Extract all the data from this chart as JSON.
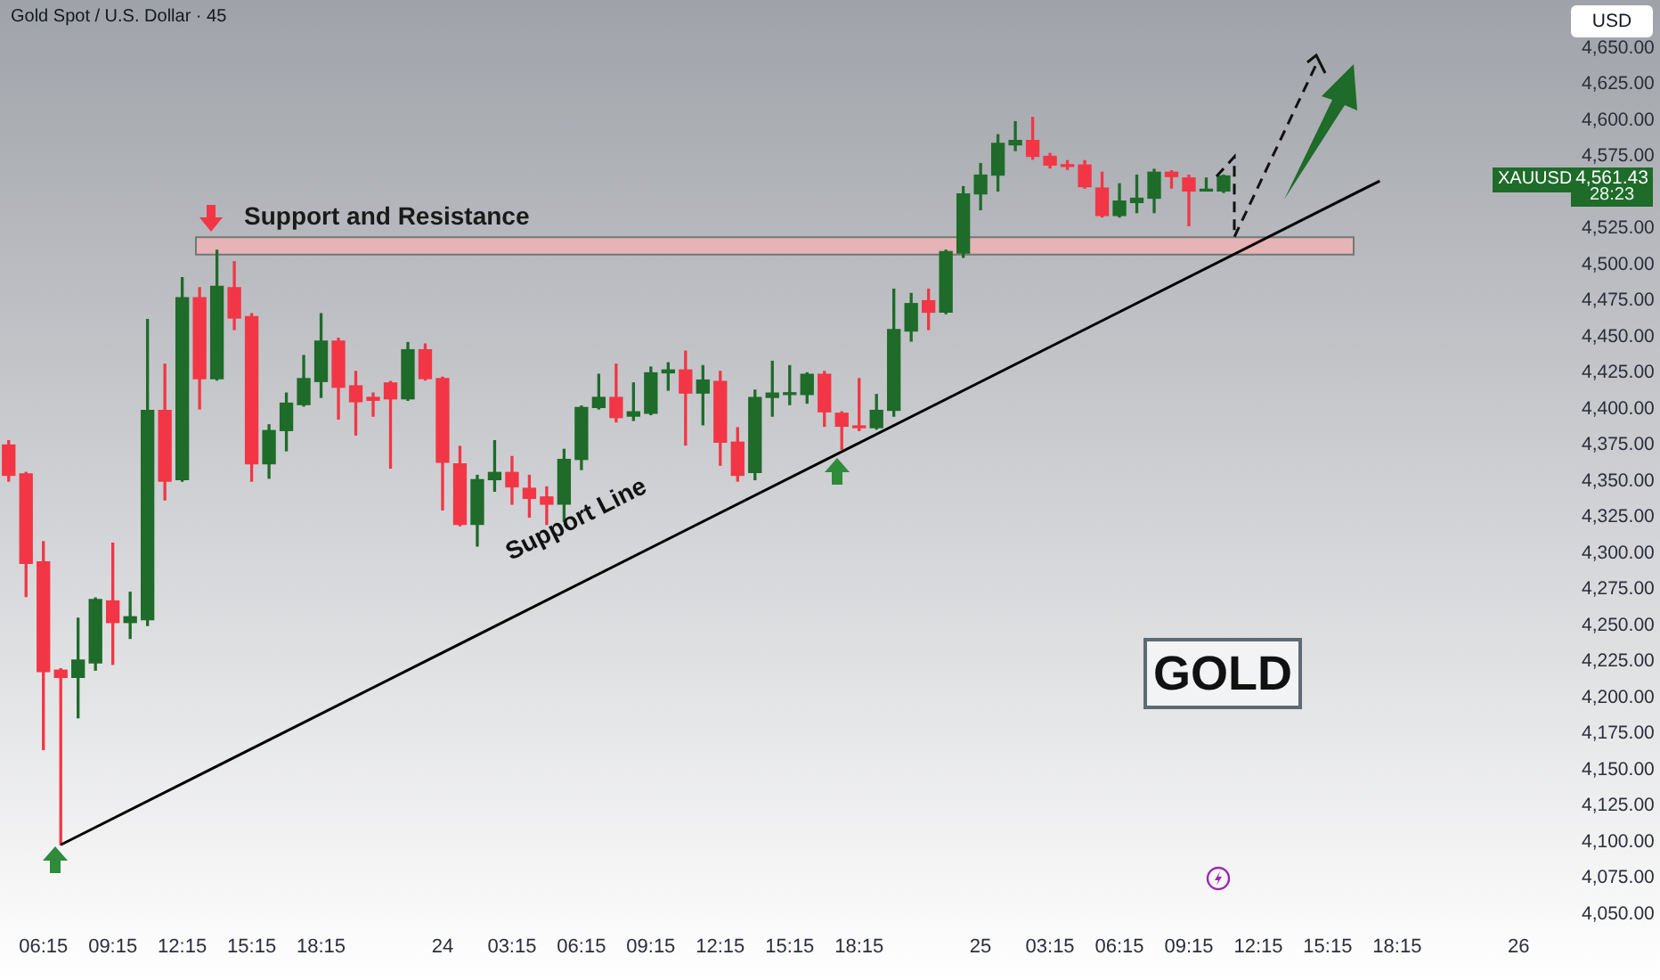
{
  "chart_data": {
    "type": "candlestick",
    "title": "Gold Spot / U.S. Dollar · 45",
    "categories": [
      null,
      null,
      "06:15",
      null,
      null,
      null,
      "09:15",
      null,
      null,
      null,
      "12:15",
      null,
      null,
      null,
      "15:15",
      null,
      null,
      null,
      "18:15",
      null,
      null,
      null,
      null,
      null,
      null,
      "24",
      null,
      null,
      null,
      "03:15",
      null,
      null,
      null,
      "06:15",
      null,
      null,
      null,
      "09:15",
      null,
      null,
      null,
      "12:15",
      null,
      null,
      null,
      "15:15",
      null,
      null,
      null,
      "18:15",
      null,
      null,
      null,
      null,
      null,
      null,
      "25",
      null,
      null,
      null,
      "03:15",
      null,
      null,
      null,
      "06:15",
      null,
      null,
      null,
      "09:15",
      null,
      null,
      null,
      "12:15",
      null,
      null,
      null,
      "15:15",
      null,
      null,
      null,
      "18:15",
      null,
      null,
      null,
      null,
      null,
      null,
      "26",
      null,
      null
    ],
    "ohlc": [
      [
        4375,
        4378,
        4350,
        4354
      ],
      [
        4355,
        4356,
        4270,
        4293
      ],
      [
        4294,
        4308,
        4164,
        4218
      ],
      [
        4219,
        4220,
        4098,
        4214
      ],
      [
        4214,
        4255,
        4186,
        4226
      ],
      [
        4224,
        4269,
        4219,
        4268
      ],
      [
        4267,
        4307,
        4223,
        4252
      ],
      [
        4252,
        4273,
        4241,
        4256
      ],
      [
        4254,
        4462,
        4250,
        4399
      ],
      [
        4399,
        4431,
        4337,
        4350
      ],
      [
        4351,
        4491,
        4350,
        4477
      ],
      [
        4477,
        4484,
        4400,
        4421
      ],
      [
        4421,
        4510,
        4420,
        4485
      ],
      [
        4484,
        4502,
        4455,
        4463
      ],
      [
        4464,
        4466,
        4350,
        4362
      ],
      [
        4362,
        4389,
        4352,
        4385
      ],
      [
        4385,
        4411,
        4371,
        4404
      ],
      [
        4403,
        4437,
        4402,
        4421
      ],
      [
        4419,
        4466,
        4408,
        4447
      ],
      [
        4447,
        4449,
        4393,
        4415
      ],
      [
        4416,
        4426,
        4382,
        4405
      ],
      [
        4408,
        4411,
        4395,
        4406
      ],
      [
        4418,
        4419,
        4359,
        4407
      ],
      [
        4407,
        4446,
        4406,
        4441
      ],
      [
        4441,
        4445,
        4420,
        4421
      ],
      [
        4421,
        4422,
        4330,
        4363
      ],
      [
        4362,
        4374,
        4319,
        4320
      ],
      [
        4320,
        4354,
        4305,
        4351
      ],
      [
        4351,
        4378,
        4343,
        4356
      ],
      [
        4356,
        4367,
        4334,
        4346
      ],
      [
        4345,
        4354,
        4325,
        4338
      ],
      [
        4339,
        4346,
        4320,
        4334
      ],
      [
        4334,
        4372,
        4322,
        4365
      ],
      [
        4365,
        4402,
        4358,
        4401
      ],
      [
        4401,
        4424,
        4400,
        4408
      ],
      [
        4408,
        4431,
        4391,
        4394
      ],
      [
        4395,
        4418,
        4392,
        4398
      ],
      [
        4397,
        4429,
        4396,
        4425
      ],
      [
        4425,
        4432,
        4413,
        4427
      ],
      [
        4427,
        4440,
        4375,
        4411
      ],
      [
        4411,
        4430,
        4389,
        4420
      ],
      [
        4419,
        4426,
        4361,
        4377
      ],
      [
        4377,
        4387,
        4350,
        4354
      ],
      [
        4356,
        4413,
        4351,
        4408
      ],
      [
        4408,
        4433,
        4395,
        4411
      ],
      [
        4410,
        4430,
        4403,
        4411
      ],
      [
        4410,
        4425,
        4404,
        4424
      ],
      [
        4424,
        4426,
        4388,
        4398
      ],
      [
        4397,
        4398,
        4372,
        4388
      ],
      [
        4388,
        4421,
        4385,
        4387
      ],
      [
        4387,
        4410,
        4386,
        4399
      ],
      [
        4399,
        4483,
        4395,
        4455
      ],
      [
        4454,
        4480,
        4447,
        4473
      ],
      [
        4475,
        4483,
        4455,
        4467
      ],
      [
        4467,
        4510,
        4466,
        4509
      ],
      [
        4508,
        4554,
        4505,
        4549
      ],
      [
        4549,
        4570,
        4538,
        4562
      ],
      [
        4562,
        4590,
        4551,
        4584
      ],
      [
        4583,
        4599,
        4579,
        4586
      ],
      [
        4586,
        4602,
        4573,
        4575
      ],
      [
        4575,
        4577,
        4567,
        4569
      ],
      [
        4569,
        4572,
        4566,
        4568
      ],
      [
        4569,
        4572,
        4553,
        4554
      ],
      [
        4553,
        4564,
        4533,
        4534
      ],
      [
        4534,
        4556,
        4533,
        4544
      ],
      [
        4543,
        4562,
        4536,
        4546
      ],
      [
        4546,
        4566,
        4536,
        4564
      ],
      [
        4564,
        4565,
        4553,
        4561
      ],
      [
        4560,
        4562,
        4527,
        4551
      ],
      [
        4551,
        4560,
        4551,
        4552
      ],
      [
        4551,
        4562,
        4550,
        4561.43
      ],
      null,
      null,
      null,
      null,
      null,
      null,
      null,
      null,
      null,
      null,
      null,
      null,
      null,
      null,
      null,
      null,
      null,
      null,
      null
    ],
    "colors": [
      "#f23645",
      "#f23645",
      "#f23645",
      "#f23645",
      "#1e6b2a",
      "#1e6b2a",
      "#f23645",
      "#1e6b2a",
      "#1e6b2a",
      "#f23645",
      "#1e6b2a",
      "#f23645",
      "#1e6b2a",
      "#f23645",
      "#f23645",
      "#1e6b2a",
      "#1e6b2a",
      "#1e6b2a",
      "#1e6b2a",
      "#f23645",
      "#f23645",
      "#f23645",
      "#f23645",
      "#1e6b2a",
      "#f23645",
      "#f23645",
      "#f23645",
      "#1e6b2a",
      "#1e6b2a",
      "#f23645",
      "#f23645",
      "#f23645",
      "#1e6b2a",
      "#1e6b2a",
      "#1e6b2a",
      "#f23645",
      "#1e6b2a",
      "#1e6b2a",
      "#1e6b2a",
      "#f23645",
      "#1e6b2a",
      "#f23645",
      "#f23645",
      "#1e6b2a",
      "#1e6b2a",
      "#1e6b2a",
      "#1e6b2a",
      "#f23645",
      "#f23645",
      "#f23645",
      "#1e6b2a",
      "#1e6b2a",
      "#1e6b2a",
      "#f23645",
      "#1e6b2a",
      "#1e6b2a",
      "#1e6b2a",
      "#1e6b2a",
      "#1e6b2a",
      "#f23645",
      "#f23645",
      "#f23645",
      "#f23645",
      "#f23645",
      "#1e6b2a",
      "#1e6b2a",
      "#1e6b2a",
      "#f23645",
      "#f23645",
      "#1e6b2a",
      "#1e6b2a",
      null,
      null,
      null,
      null,
      null,
      null,
      null,
      null,
      null,
      null,
      null,
      null,
      null,
      null,
      null,
      null,
      null,
      null,
      null
    ],
    "series": [
      {
        "type": "line",
        "color": "#000000",
        "values": [
          null,
          null,
          null,
          4098,
          null,
          null,
          null,
          null,
          null,
          null,
          null,
          null,
          null,
          null,
          null,
          null,
          null,
          null,
          null,
          null,
          null,
          null,
          null,
          null,
          null,
          null,
          null,
          null,
          null,
          null,
          null,
          null,
          null,
          null,
          null,
          null,
          null,
          null,
          null,
          null,
          null,
          null,
          null,
          null,
          null,
          null,
          null,
          null,
          null,
          null,
          null,
          null,
          null,
          null,
          null,
          null,
          null,
          null,
          null,
          null,
          null,
          null,
          null,
          null,
          null,
          null,
          null,
          null,
          null,
          null,
          null,
          null,
          null,
          null,
          null,
          null,
          null,
          null,
          null,
          4558,
          null,
          null,
          null,
          null,
          null,
          null,
          null,
          null,
          null,
          null
        ]
      }
    ],
    "bands": [
      {
        "axis": "y",
        "from": 4507,
        "to": 4519,
        "label": "Support and Resistance",
        "color": "#e6b3b6"
      }
    ],
    "annotations": [
      "Support Line",
      "GOLD",
      "XAUUSD",
      "4,561.43",
      "28:23",
      "USD"
    ],
    "ylim": [
      4050,
      4650
    ],
    "yticks": [
      {
        "value": 4050,
        "label": "4,050.00"
      },
      {
        "value": 4075,
        "label": "4,075.00"
      },
      {
        "value": 4100,
        "label": "4,100.00"
      },
      {
        "value": 4125,
        "label": "4,125.00"
      },
      {
        "value": 4150,
        "label": "4,150.00"
      },
      {
        "value": 4175,
        "label": "4,175.00"
      },
      {
        "value": 4200,
        "label": "4,200.00"
      },
      {
        "value": 4225,
        "label": "4,225.00"
      },
      {
        "value": 4250,
        "label": "4,250.00"
      },
      {
        "value": 4275,
        "label": "4,275.00"
      },
      {
        "value": 4300,
        "label": "4,300.00"
      },
      {
        "value": 4325,
        "label": "4,325.00"
      },
      {
        "value": 4350,
        "label": "4,350.00"
      },
      {
        "value": 4375,
        "label": "4,375.00"
      },
      {
        "value": 4400,
        "label": "4,400.00"
      },
      {
        "value": 4425,
        "label": "4,425.00"
      },
      {
        "value": 4450,
        "label": "4,450.00"
      },
      {
        "value": 4475,
        "label": "4,475.00"
      },
      {
        "value": 4500,
        "label": "4,500.00"
      },
      {
        "value": 4525,
        "label": "4,525.00"
      },
      {
        "value": 4575,
        "label": "4,575.00"
      },
      {
        "value": 4600,
        "label": "4,600.00"
      },
      {
        "value": 4625,
        "label": "4,625.00"
      },
      {
        "value": 4650,
        "label": "4,650.00"
      }
    ]
  }
}
